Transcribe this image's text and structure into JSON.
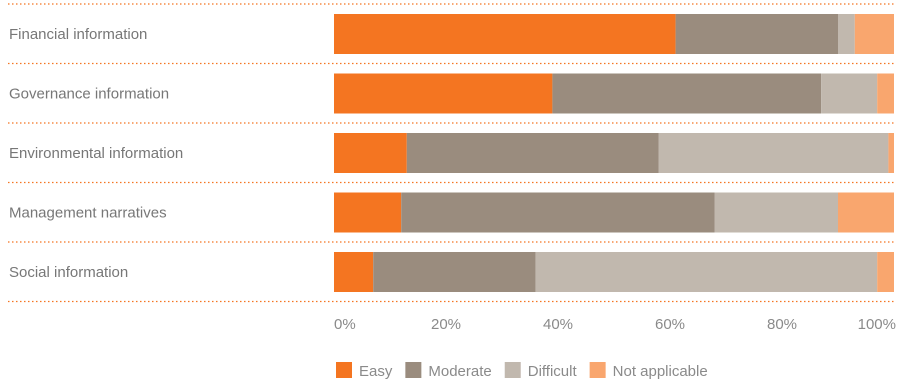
{
  "chart_data": {
    "type": "bar",
    "orientation": "horizontal",
    "stacked": true,
    "categories": [
      "Financial information",
      "Governance information",
      "Environmental information",
      "Management narratives",
      "Social information"
    ],
    "series": [
      {
        "name": "Easy",
        "color": "#f47521",
        "values": [
          61,
          39,
          13,
          12,
          7
        ]
      },
      {
        "name": "Moderate",
        "color": "#9a8c7e",
        "values": [
          29,
          48,
          45,
          56,
          29
        ]
      },
      {
        "name": "Difficult",
        "color": "#c1b8ae",
        "values": [
          3,
          10,
          41,
          22,
          61
        ]
      },
      {
        "name": "Not applicable",
        "color": "#f9a66e",
        "values": [
          7,
          3,
          1,
          10,
          3
        ]
      }
    ],
    "xlim": [
      0,
      100
    ],
    "xticks": [
      "0%",
      "20%",
      "40%",
      "60%",
      "80%",
      "100%"
    ],
    "legend_position": "bottom",
    "separator_color": "#f47521"
  }
}
